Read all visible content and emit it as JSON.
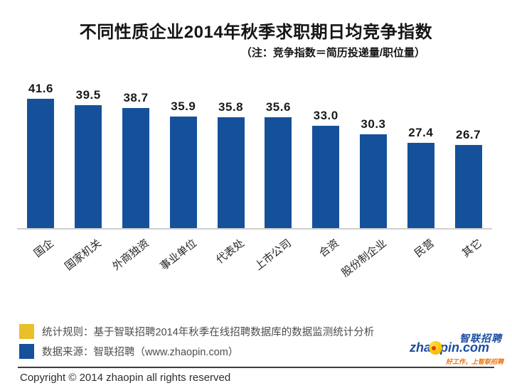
{
  "title": "不同性质企业2014年秋季求职期日均竞争指数",
  "subtitle": "（注：竞争指数＝简历投递量/职位量）",
  "chart_data": {
    "type": "bar",
    "title": "不同性质企业2014年秋季求职期日均竞争指数",
    "note": "（注：竞争指数＝简历投递量/职位量）",
    "categories": [
      "国企",
      "国家机关",
      "外商独资",
      "事业单位",
      "代表处",
      "上市公司",
      "合资",
      "股份制企业",
      "民营",
      "其它"
    ],
    "values": [
      41.6,
      39.5,
      38.7,
      35.9,
      35.8,
      35.6,
      33.0,
      30.3,
      27.4,
      26.7
    ],
    "value_labels": [
      "41.6",
      "39.5",
      "38.7",
      "35.9",
      "35.8",
      "35.6",
      "33.0",
      "30.3",
      "27.4",
      "26.7"
    ],
    "xlabel": "",
    "ylabel": "",
    "ylim": [
      0,
      45
    ],
    "grid": false,
    "legend_position": "none",
    "bar_color": "#15519B",
    "axis_line_color": "#CFCFCF"
  },
  "legend": {
    "items": [
      {
        "label": "统计规则：基于智联招聘2014年秋季在线招聘数据库的数据监测统计分析",
        "color": "#E9C028"
      },
      {
        "label": "数据来源：智联招聘（www.zhaopin.com）",
        "color": "#15519B"
      }
    ]
  },
  "logo": {
    "brand_cn": "智联招聘",
    "brand_en_prefix": "zha",
    "brand_en_suffix": "pin.com",
    "tagline": "好工作，上智联招聘",
    "blue": "#1C4DA1",
    "ball_dot_red": "#E8380D",
    "tagline_orange": "#E87511"
  },
  "footer": {
    "copyright": "Copyright © 2014 zhaopin all rights reserved"
  }
}
